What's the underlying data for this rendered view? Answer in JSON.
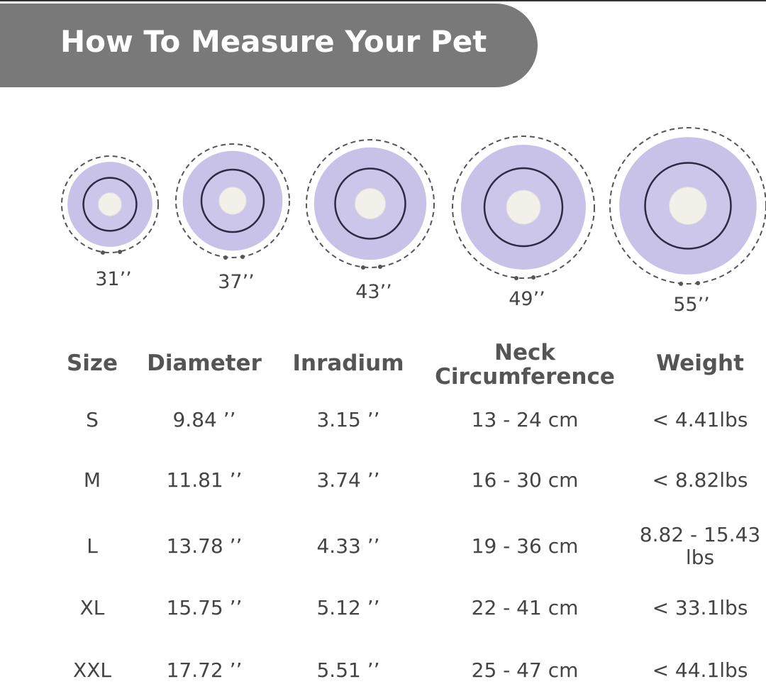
{
  "header": {
    "title": "How To Measure Your Pet"
  },
  "collars": [
    "31’’",
    "37’’",
    "43’’",
    "49’’",
    "55’’"
  ],
  "table": {
    "columns": [
      "Size",
      "Diameter",
      "Inradium",
      "Neck Circumference",
      "Weight"
    ],
    "rows": [
      [
        "S",
        "9.84 ’’",
        "3.15 ’’",
        "13 - 24 cm",
        "< 4.41lbs"
      ],
      [
        "M",
        "11.81 ’’",
        "3.74 ’’",
        "16 - 30 cm",
        "< 8.82lbs"
      ],
      [
        "L",
        "13.78 ’’",
        "4.33 ’’",
        "19 - 36 cm",
        "8.82 - 15.43 lbs"
      ],
      [
        "XL",
        "15.75 ’’",
        "5.12 ’’",
        "22 - 41 cm",
        "< 33.1lbs"
      ],
      [
        "XXL",
        "17.72 ’’",
        "5.51 ’’",
        "25 - 47 cm",
        "< 44.1lbs"
      ]
    ]
  }
}
